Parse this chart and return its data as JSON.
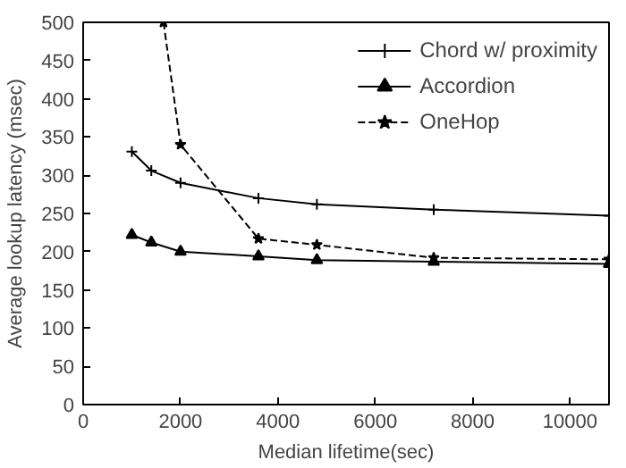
{
  "chart_data": {
    "type": "line",
    "xlabel": "Median lifetime(sec)",
    "ylabel": "Average lookup latency (msec)",
    "xlim": [
      0,
      10800
    ],
    "ylim": [
      0,
      500
    ],
    "xticks": [
      0,
      2000,
      4000,
      6000,
      8000,
      10000
    ],
    "yticks": [
      0,
      50,
      100,
      150,
      200,
      250,
      300,
      350,
      400,
      450,
      500
    ],
    "grid": false,
    "legend": "top right",
    "series": [
      {
        "name": "Chord w/ proximity",
        "color": "#000000",
        "marker": "cross",
        "line_style": "solid",
        "x": [
          1000,
          1400,
          2000,
          3600,
          4800,
          7200,
          10800
        ],
        "values": [
          331,
          306,
          290,
          270,
          262,
          255,
          247
        ]
      },
      {
        "name": "Accordion",
        "color": "#000000",
        "marker": "triangle",
        "line_style": "solid",
        "x": [
          1000,
          1400,
          2000,
          3600,
          4800,
          7200,
          10800
        ],
        "values": [
          222,
          212,
          200,
          194,
          189,
          187,
          184
        ]
      },
      {
        "name": "OneHop",
        "color": "#000000",
        "marker": "star",
        "line_style": "dashed",
        "x": [
          1650,
          2000,
          3600,
          4800,
          7200,
          10800
        ],
        "values": [
          500,
          340,
          217,
          209,
          192,
          190
        ]
      }
    ]
  }
}
